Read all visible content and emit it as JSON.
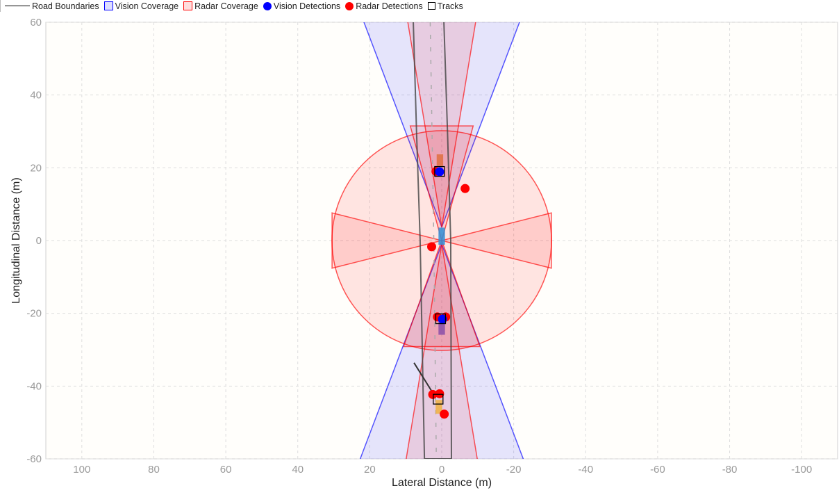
{
  "legend": [
    {
      "label": "Road Boundaries",
      "symbol": "line",
      "color": "#000000"
    },
    {
      "label": "Vision Coverage",
      "symbol": "patch",
      "color": "#0000ff"
    },
    {
      "label": "Radar Coverage",
      "symbol": "patch",
      "color": "#ff0000"
    },
    {
      "label": "Vision Detections",
      "symbol": "dot",
      "color": "#0000ff"
    },
    {
      "label": "Radar Detections",
      "symbol": "dot",
      "color": "#ff0000"
    },
    {
      "label": "Tracks",
      "symbol": "square",
      "color": "#000000"
    }
  ],
  "chart_data": {
    "type": "scatter",
    "xlabel": "Lateral Distance (m)",
    "ylabel": "Longitudinal Distance (m)",
    "xlim": [
      -110,
      110
    ],
    "x_reversed": true,
    "ylim": [
      -60,
      60
    ],
    "xticks": [
      100,
      80,
      60,
      40,
      20,
      0,
      -20,
      -40,
      -60,
      -80,
      -100
    ],
    "yticks": [
      60,
      40,
      20,
      0,
      -20,
      -40,
      -60
    ],
    "grid": true,
    "legend_position": "top-outside",
    "vision_coverage": [
      {
        "origin": [
          0,
          3.7
        ],
        "heading_deg": 0,
        "fov_deg": 42,
        "range": 70
      },
      {
        "origin": [
          0,
          -1
        ],
        "heading_deg": 180,
        "fov_deg": 42,
        "range": 70
      }
    ],
    "radar_coverage": [
      {
        "shape": "circle",
        "center": [
          0,
          0
        ],
        "radius": 30.5
      },
      {
        "shape": "sector",
        "origin": [
          0,
          3.7
        ],
        "heading_deg": 0,
        "fov_deg": 19,
        "range": 70
      },
      {
        "shape": "sector",
        "origin": [
          0,
          -1
        ],
        "heading_deg": 180,
        "fov_deg": 19,
        "range": 70
      },
      {
        "shape": "sector",
        "origin": [
          0,
          0
        ],
        "heading_deg": 0,
        "fov_deg": 31,
        "range": 32.7
      },
      {
        "shape": "sector",
        "origin": [
          0,
          0
        ],
        "heading_deg": 180,
        "fov_deg": 40,
        "range": 31
      },
      {
        "shape": "sector",
        "origin": [
          0,
          0
        ],
        "heading_deg": 90,
        "fov_deg": 28,
        "range": 31.4
      },
      {
        "shape": "sector",
        "origin": [
          0,
          0
        ],
        "heading_deg": -90,
        "fov_deg": 28,
        "range": 31.4
      }
    ],
    "road_boundaries": [
      [
        [
          7.9,
          60
        ],
        [
          7,
          30
        ],
        [
          6,
          0
        ],
        [
          5.4,
          -30
        ],
        [
          4.8,
          -60
        ],
        [
          -2.7,
          -60
        ],
        [
          -2.6,
          -30
        ],
        [
          -2.5,
          0
        ],
        [
          -1.6,
          30
        ],
        [
          -0.6,
          60
        ]
      ]
    ],
    "lane_markings": [
      [
        [
          3.2,
          60
        ],
        [
          2.2,
          0
        ],
        [
          1.5,
          -60
        ]
      ]
    ],
    "vehicles": [
      {
        "center": [
          0.5,
          22.1
        ],
        "length": 3.2,
        "width": 1.8,
        "color": "#e07040"
      },
      {
        "center": [
          0,
          1.2
        ],
        "length": 4.7,
        "width": 1.8,
        "color": "#2f8fd8"
      },
      {
        "center": [
          0,
          -23.9
        ],
        "length": 4,
        "width": 1.8,
        "color": "#8a4fa8"
      },
      {
        "center": [
          0.8,
          -45.7
        ],
        "length": 3.8,
        "width": 1.8,
        "color": "#f0b040"
      }
    ],
    "radar_detections": [
      [
        1.6,
        19
      ],
      [
        -6.5,
        14.3
      ],
      [
        2.8,
        -1.7
      ],
      [
        1.2,
        -21
      ],
      [
        -1.1,
        -21
      ],
      [
        2.5,
        -42.3
      ],
      [
        0.6,
        -42.1
      ],
      [
        -0.7,
        -47.7
      ]
    ],
    "vision_detections": [
      [
        0.6,
        18.9
      ],
      [
        -0.2,
        -21.6
      ]
    ],
    "tracks": [
      [
        0.6,
        19
      ],
      [
        0.3,
        -21.5
      ],
      [
        1,
        -43.6
      ]
    ],
    "track_history": [
      [
        [
          7.7,
          -33.6
        ],
        [
          1.9,
          -42.8
        ]
      ]
    ]
  }
}
